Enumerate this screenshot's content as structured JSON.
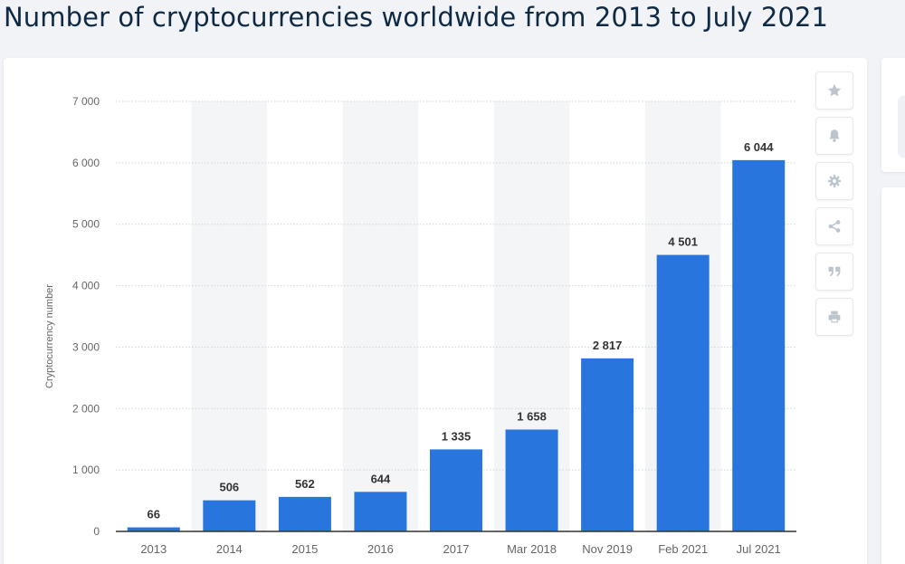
{
  "page": {
    "title": "Number of cryptocurrencies worldwide from 2013 to July 2021"
  },
  "chart_data": {
    "type": "bar",
    "title": "",
    "xlabel": "",
    "ylabel": "Cryptocurrency number",
    "categories": [
      "2013",
      "2014",
      "2015",
      "2016",
      "2017",
      "Mar 2018",
      "Nov 2019",
      "Feb 2021",
      "Jul 2021"
    ],
    "values": [
      66,
      506,
      562,
      644,
      1335,
      1658,
      2817,
      4501,
      6044
    ],
    "value_labels": [
      "66",
      "506",
      "562",
      "644",
      "1 335",
      "1 658",
      "2 817",
      "4 501",
      "6 044"
    ],
    "yticks": [
      0,
      1000,
      2000,
      3000,
      4000,
      5000,
      6000,
      7000
    ],
    "ytick_labels": [
      "0",
      "1 000",
      "2 000",
      "3 000",
      "4 000",
      "5 000",
      "6 000",
      "7 000"
    ],
    "ylim": [
      0,
      7000
    ],
    "grid": true,
    "legend": "none",
    "colors": {
      "bar": "#2876dd",
      "band": "#f4f5f7",
      "grid": "#cfd4da",
      "axis": "#333333",
      "label": "#333333",
      "tick": "#666666"
    }
  },
  "toolbar": {
    "buttons": [
      {
        "icon": "star-icon"
      },
      {
        "icon": "bell-icon"
      },
      {
        "icon": "gear-icon"
      },
      {
        "icon": "share-icon"
      },
      {
        "icon": "quote-icon"
      },
      {
        "icon": "print-icon"
      }
    ]
  }
}
